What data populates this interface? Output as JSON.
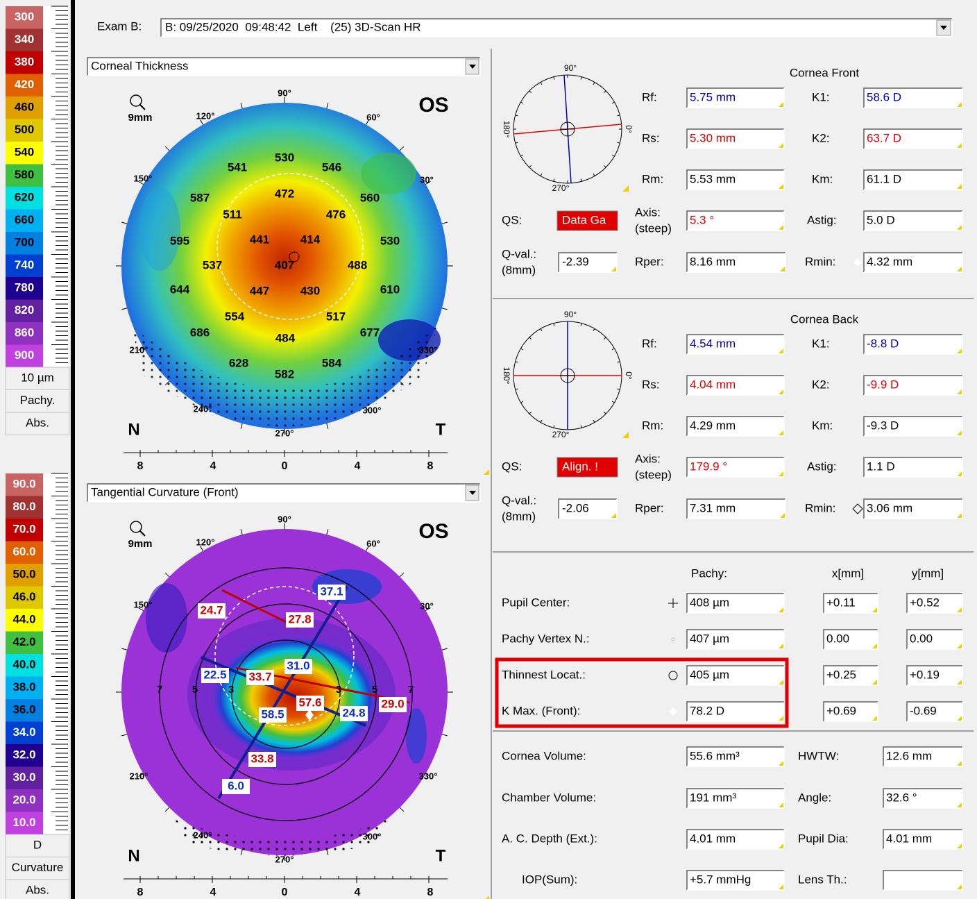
{
  "exam": {
    "label": "Exam B:",
    "value": "B: 09/25/2020  09:48:42  Left    (25) 3D-Scan HR"
  },
  "pachy_scale": {
    "labels": [
      "300",
      "340",
      "380",
      "420",
      "460",
      "500",
      "540",
      "580",
      "620",
      "660",
      "700",
      "740",
      "780",
      "820",
      "860",
      "900"
    ],
    "unit": "10 µm",
    "mode": "Pachy.",
    "reference": "Abs."
  },
  "curv_scale": {
    "labels": [
      "90.0",
      "80.0",
      "70.0",
      "60.0",
      "50.0",
      "46.0",
      "44.0",
      "42.0",
      "40.0",
      "38.0",
      "36.0",
      "34.0",
      "32.0",
      "30.0",
      "20.0",
      "10.0"
    ],
    "unit": "D",
    "mode": "Curvature",
    "reference": "Abs."
  },
  "maps": [
    {
      "title": "Corneal Thickness",
      "eye": "OS",
      "zoom": "9mm",
      "angles": [
        "90°",
        "120°",
        "60°",
        "150°",
        "30°",
        "210°",
        "330°",
        "240°",
        "300°",
        "270°"
      ],
      "nasal": "N",
      "temporal": "T",
      "ruler": [
        "8",
        "4",
        "0",
        "4",
        "8"
      ],
      "values": [
        "530",
        "541",
        "546",
        "587",
        "472",
        "560",
        "511",
        "476",
        "595",
        "441",
        "414",
        "530",
        "537",
        "407",
        "488",
        "644",
        "447",
        "430",
        "610",
        "554",
        "517",
        "686",
        "484",
        "677",
        "628",
        "584",
        "582"
      ]
    },
    {
      "title": "Tangential Curvature (Front)",
      "eye": "OS",
      "zoom": "9mm",
      "angles": [
        "90°",
        "120°",
        "60°",
        "150°",
        "30°",
        "210°",
        "330°",
        "240°",
        "300°",
        "270°"
      ],
      "nasal": "N",
      "temporal": "T",
      "ruler": [
        "8",
        "4",
        "0",
        "4",
        "8"
      ],
      "rings": [
        "7",
        "5",
        "3",
        "3",
        "5",
        "7"
      ],
      "values": [
        "37.1",
        "24.7",
        "27.8",
        "22.5",
        "33.7",
        "31.0",
        "57.6",
        "58.5",
        "24.8",
        "29.0",
        "33.8",
        "6.0"
      ]
    }
  ],
  "cornea_front": {
    "title": "Cornea Front",
    "widget_angles": [
      "90°",
      "180°",
      "0°",
      "270°"
    ],
    "fields": [
      [
        "Rf:",
        "5.75 mm"
      ],
      [
        "K1:",
        "58.6 D"
      ],
      [
        "Rs:",
        "5.30 mm"
      ],
      [
        "K2:",
        "63.7 D"
      ],
      [
        "Rm:",
        "5.53 mm"
      ],
      [
        "Km:",
        "61.1 D"
      ],
      [
        "Astig:",
        "5.0 D"
      ],
      [
        "Rper:",
        "8.16 mm"
      ],
      [
        "Rmin:",
        "4.32 mm"
      ]
    ],
    "qs": {
      "label": "QS:",
      "value": "Data Ga"
    },
    "axis": {
      "label": [
        "Axis:",
        "(steep)"
      ],
      "value": "5.3 °"
    },
    "qval": {
      "label": [
        "Q-val.:",
        "(8mm)"
      ],
      "value": "-2.39"
    }
  },
  "cornea_back": {
    "title": "Cornea Back",
    "widget_angles": [
      "90°",
      "180°",
      "0°",
      "270°"
    ],
    "fields": [
      [
        "Rf:",
        "4.54 mm"
      ],
      [
        "K1:",
        "-8.8 D"
      ],
      [
        "Rs:",
        "4.04 mm"
      ],
      [
        "K2:",
        "-9.9 D"
      ],
      [
        "Rm:",
        "4.29 mm"
      ],
      [
        "Km:",
        "-9.3 D"
      ],
      [
        "Astig:",
        "1.1 D"
      ],
      [
        "Rper:",
        "7.31 mm"
      ],
      [
        "Rmin:",
        "3.06 mm"
      ]
    ],
    "qs": {
      "label": "QS:",
      "value": "Align. !"
    },
    "axis": {
      "label": [
        "Axis:",
        "(steep)"
      ],
      "value": "179.9 °"
    },
    "qval": {
      "label": [
        "Q-val.:",
        "(8mm)"
      ],
      "value": "-2.06"
    }
  },
  "pachy_table": {
    "headers": [
      "Pachy:",
      "x[mm]",
      "y[mm]"
    ],
    "rows": [
      [
        "Pupil Center:",
        "408 µm",
        "+0.11",
        "+0.52"
      ],
      [
        "Pachy Vertex N.:",
        "407 µm",
        "0.00",
        "0.00"
      ],
      [
        "Thinnest Locat.:",
        "405 µm",
        "+0.25",
        "+0.19"
      ],
      [
        "K Max. (Front):",
        "78.2 D",
        "+0.69",
        "-0.69"
      ]
    ]
  },
  "volumes": {
    "rows": [
      [
        "Cornea Volume:",
        "55.6 mm³",
        "HWTW:",
        "12.6 mm"
      ],
      [
        "Chamber Volume:",
        "191 mm³",
        "Angle:",
        "32.6 °"
      ],
      [
        "A. C. Depth (Ext.):",
        "4.01 mm",
        "Pupil Dia:",
        "4.01 mm"
      ],
      [
        "IOP(Sum):",
        "+5.7 mmHg",
        "Lens Th.:"
      ]
    ]
  }
}
